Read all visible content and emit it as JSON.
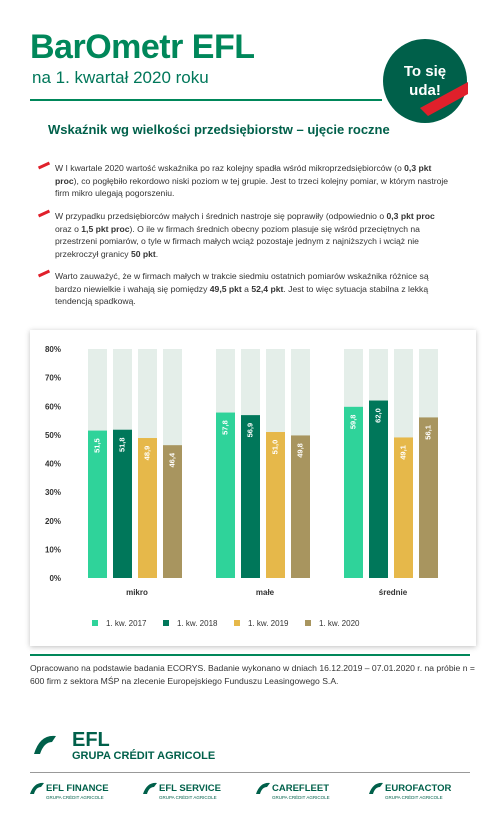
{
  "header": {
    "title": "BarOmetr EFL",
    "subtitle": "na 1. kwartał 2020 roku",
    "badge_line1": "To się",
    "badge_line2": "uda!"
  },
  "section_title": "Wskaźnik wg wielkości przedsiębiorstw – ujęcie roczne",
  "bullets": [
    [
      {
        "text": "W I kwartale 2020 wartość wskaźnika po raz kolejny spadła wśród mikroprzedsiębiorców (o ",
        "bold": false
      },
      {
        "text": "0,3 pkt proc",
        "bold": true
      },
      {
        "text": "), co pogłębiło rekordowo niski poziom w tej grupie. Jest to trzeci kolejny pomiar, w którym nastroje firm mikro ulegają pogorszeniu.",
        "bold": false
      }
    ],
    [
      {
        "text": "W przypadku przedsiębiorców małych i średnich nastroje się poprawiły (odpowiednio o ",
        "bold": false
      },
      {
        "text": "0,3 pkt proc",
        "bold": true
      },
      {
        "text": " oraz o ",
        "bold": false
      },
      {
        "text": "1,5 pkt proc",
        "bold": true
      },
      {
        "text": "). O ile w firmach średnich obecny poziom plasuje się wśród przeciętnych na przestrzeni pomiarów, o tyle w firmach małych wciąż pozostaje jednym z najniższych i wciąż nie przekroczył granicy ",
        "bold": false
      },
      {
        "text": "50 pkt",
        "bold": true
      },
      {
        "text": ".",
        "bold": false
      }
    ],
    [
      {
        "text": "Warto zauważyć, że w firmach małych w trakcie siedmiu ostatnich pomiarów wskaźnika różnice są bardzo niewielkie i wahają się pomiędzy ",
        "bold": false
      },
      {
        "text": "49,5 pkt",
        "bold": true
      },
      {
        "text": " a ",
        "bold": false
      },
      {
        "text": "52,4 pkt",
        "bold": true
      },
      {
        "text": ". Jest to więc sytuacja stabilna z lekką tendencją spadkową.",
        "bold": false
      }
    ]
  ],
  "chart_data": {
    "type": "bar",
    "categories": [
      "mikro",
      "małe",
      "średnie"
    ],
    "series": [
      {
        "name": "1. kw. 2017",
        "color": "#2fd39a",
        "values": [
          51.5,
          57.8,
          59.8
        ],
        "value_labels": [
          "51,5",
          "57,8",
          "59,8"
        ]
      },
      {
        "name": "1. kw. 2018",
        "color": "#00775a",
        "values": [
          51.8,
          56.9,
          62.0
        ],
        "value_labels": [
          "51,8",
          "56,9",
          "62,0"
        ]
      },
      {
        "name": "1. kw. 2019",
        "color": "#e6b84a",
        "values": [
          48.9,
          51.0,
          49.1
        ],
        "value_labels": [
          "48,9",
          "51,0",
          "49,1"
        ]
      },
      {
        "name": "1. kw. 2020",
        "color": "#a8955f",
        "values": [
          46.4,
          49.8,
          56.1
        ],
        "value_labels": [
          "46,4",
          "49,8",
          "56,1"
        ]
      }
    ],
    "ylim": [
      0,
      80
    ],
    "yticks": [
      {
        "value": 0,
        "label": "0%"
      },
      {
        "value": 10,
        "label": "10%"
      },
      {
        "value": 20,
        "label": "20%"
      },
      {
        "value": 30,
        "label": "30%"
      },
      {
        "value": 40,
        "label": "40%"
      },
      {
        "value": 50,
        "label": "50%"
      },
      {
        "value": 60,
        "label": "60%"
      },
      {
        "value": 70,
        "label": "70%"
      },
      {
        "value": 80,
        "label": "80%"
      }
    ]
  },
  "footer": {
    "note": "Opracowano na podstawie badania ECORYS. Badanie wykonano w dniach 16.12.2019 – 07.01.2020 r. na próbie n = 600 firm z sektora MŚP na zlecenie Europejskiego Funduszu Leasingowego S.A.",
    "logo_main": "EFL",
    "logo_sub": "GRUPA CRÉDIT AGRICOLE",
    "brands": [
      {
        "name": "EFL FINANCE",
        "sub": "GRUPA CRÉDIT AGRICOLE"
      },
      {
        "name": "EFL SERVICE",
        "sub": "GRUPA CRÉDIT AGRICOLE"
      },
      {
        "name": "CAREFLEET",
        "sub": "GRUPA CRÉDIT AGRICOLE"
      },
      {
        "name": "EUROFACTOR",
        "sub": "GRUPA CRÉDIT AGRICOLE"
      }
    ]
  }
}
